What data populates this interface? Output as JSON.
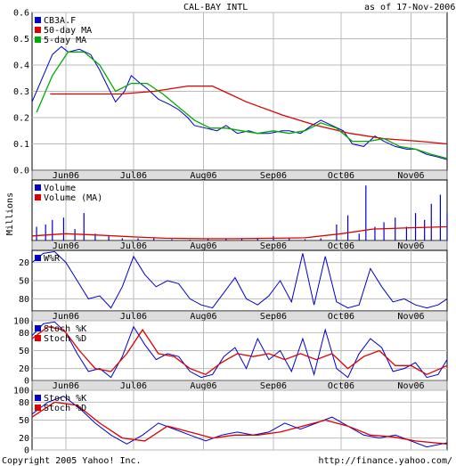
{
  "header": {
    "title": "CAL-BAY INTL",
    "asof": "as of 17-Nov-2006"
  },
  "footer": {
    "copyright": "Copyright 2005 Yahoo! Inc.",
    "url": "http://finance.yahoo.com/"
  },
  "colors": {
    "price": "#0000cc",
    "ma50": "#dd0000",
    "ma5": "#00aa00",
    "volume": "#0000cc",
    "volume_ma": "#dd0000",
    "grid": "#bbbbbb",
    "axis_band": "#dddddd"
  },
  "x_axis": {
    "start": "2006-05-17",
    "end": "2006-11-17",
    "ticks": [
      {
        "label": "Jun06",
        "date": "2006-06-01"
      },
      {
        "label": "Jul06",
        "date": "2006-07-01"
      },
      {
        "label": "Aug06",
        "date": "2006-08-01"
      },
      {
        "label": "Sep06",
        "date": "2006-09-01"
      },
      {
        "label": "Oct06",
        "date": "2006-10-01"
      },
      {
        "label": "Nov06",
        "date": "2006-11-01"
      }
    ]
  },
  "chart_data": [
    {
      "type": "line",
      "title": "",
      "ylim": [
        0,
        0.6
      ],
      "yticks": [
        "0.0",
        "0.1",
        "0.2",
        "0.3",
        "0.4",
        "0.5",
        "0.6"
      ],
      "yvalues": [
        0,
        0.1,
        0.2,
        0.3,
        0.4,
        0.5,
        0.6
      ],
      "legend": "top-left",
      "series": [
        {
          "name": "CB3A.F",
          "color": "#0000cc",
          "x": [
            "2006-05-17",
            "2006-05-19",
            "2006-05-23",
            "2006-05-26",
            "2006-05-30",
            "2006-06-02",
            "2006-06-07",
            "2006-06-12",
            "2006-06-16",
            "2006-06-20",
            "2006-06-23",
            "2006-06-27",
            "2006-06-30",
            "2006-07-04",
            "2006-07-07",
            "2006-07-12",
            "2006-07-17",
            "2006-07-21",
            "2006-07-25",
            "2006-07-28",
            "2006-08-02",
            "2006-08-07",
            "2006-08-11",
            "2006-08-16",
            "2006-08-21",
            "2006-08-25",
            "2006-08-30",
            "2006-09-05",
            "2006-09-08",
            "2006-09-13",
            "2006-09-18",
            "2006-09-22",
            "2006-09-27",
            "2006-10-02",
            "2006-10-06",
            "2006-10-11",
            "2006-10-16",
            "2006-10-20",
            "2006-10-25",
            "2006-10-30",
            "2006-11-03",
            "2006-11-08",
            "2006-11-13",
            "2006-11-17"
          ],
          "y": [
            0.26,
            0.3,
            0.38,
            0.44,
            0.47,
            0.45,
            0.46,
            0.44,
            0.38,
            0.31,
            0.26,
            0.3,
            0.36,
            0.33,
            0.31,
            0.27,
            0.25,
            0.23,
            0.2,
            0.17,
            0.16,
            0.15,
            0.17,
            0.14,
            0.15,
            0.14,
            0.14,
            0.15,
            0.15,
            0.14,
            0.17,
            0.19,
            0.17,
            0.15,
            0.1,
            0.09,
            0.13,
            0.11,
            0.09,
            0.08,
            0.08,
            0.06,
            0.05,
            0.04
          ]
        },
        {
          "name": "50-day MA",
          "color": "#dd0000",
          "x": [
            "2006-05-25",
            "2006-06-10",
            "2006-06-25",
            "2006-07-10",
            "2006-07-25",
            "2006-08-05",
            "2006-08-20",
            "2006-09-05",
            "2006-09-20",
            "2006-10-05",
            "2006-10-20",
            "2006-11-05",
            "2006-11-17"
          ],
          "y": [
            0.29,
            0.29,
            0.29,
            0.3,
            0.32,
            0.32,
            0.26,
            0.21,
            0.17,
            0.14,
            0.12,
            0.11,
            0.1
          ]
        },
        {
          "name": "5-day MA",
          "color": "#00aa00",
          "x": [
            "2006-05-19",
            "2006-05-26",
            "2006-06-02",
            "2006-06-09",
            "2006-06-16",
            "2006-06-23",
            "2006-06-30",
            "2006-07-07",
            "2006-07-14",
            "2006-07-21",
            "2006-07-28",
            "2006-08-04",
            "2006-08-11",
            "2006-08-18",
            "2006-08-25",
            "2006-09-01",
            "2006-09-08",
            "2006-09-15",
            "2006-09-22",
            "2006-09-29",
            "2006-10-06",
            "2006-10-13",
            "2006-10-20",
            "2006-10-27",
            "2006-11-03",
            "2006-11-10",
            "2006-11-17"
          ],
          "y": [
            0.22,
            0.36,
            0.45,
            0.45,
            0.4,
            0.3,
            0.33,
            0.33,
            0.29,
            0.24,
            0.19,
            0.16,
            0.16,
            0.15,
            0.14,
            0.15,
            0.14,
            0.15,
            0.18,
            0.16,
            0.11,
            0.11,
            0.12,
            0.09,
            0.08,
            0.06,
            0.045
          ]
        }
      ]
    },
    {
      "type": "bar",
      "title": "",
      "ylabel": "Millions",
      "legend": "top-left",
      "series": [
        {
          "name": "Volume",
          "color": "#0000cc",
          "x": [
            "2006-05-19",
            "2006-05-23",
            "2006-05-26",
            "2006-05-31",
            "2006-06-05",
            "2006-06-09",
            "2006-06-14",
            "2006-06-20",
            "2006-06-26",
            "2006-07-03",
            "2006-07-10",
            "2006-07-18",
            "2006-07-26",
            "2006-08-03",
            "2006-08-11",
            "2006-08-18",
            "2006-08-25",
            "2006-09-01",
            "2006-09-08",
            "2006-09-15",
            "2006-09-22",
            "2006-09-29",
            "2006-10-04",
            "2006-10-09",
            "2006-10-12",
            "2006-10-16",
            "2006-10-20",
            "2006-10-25",
            "2006-10-30",
            "2006-11-03",
            "2006-11-07",
            "2006-11-10",
            "2006-11-14",
            "2006-11-17"
          ],
          "y": [
            0.3,
            0.35,
            0.45,
            0.5,
            0.25,
            0.6,
            0.15,
            0.1,
            0.05,
            0.05,
            0.05,
            0.03,
            0.02,
            0.03,
            0.03,
            0.05,
            0.05,
            0.1,
            0.05,
            0.03,
            0.05,
            0.35,
            0.55,
            0.15,
            1.2,
            0.3,
            0.4,
            0.5,
            0.3,
            0.6,
            0.45,
            0.8,
            1.0,
            0.6
          ]
        },
        {
          "name": "Volume (MA)",
          "color": "#dd0000",
          "x": [
            "2006-05-17",
            "2006-06-01",
            "2006-06-15",
            "2006-07-01",
            "2006-07-15",
            "2006-08-01",
            "2006-08-15",
            "2006-09-01",
            "2006-09-15",
            "2006-10-01",
            "2006-10-15",
            "2006-11-01",
            "2006-11-17"
          ],
          "y": [
            0.1,
            0.15,
            0.12,
            0.08,
            0.05,
            0.04,
            0.04,
            0.05,
            0.06,
            0.15,
            0.25,
            0.28,
            0.3
          ]
        }
      ]
    },
    {
      "type": "line",
      "title": "",
      "ylim": [
        -100,
        0
      ],
      "yticks": [
        "20",
        "50",
        "80"
      ],
      "yvalues": [
        -20,
        -50,
        -80
      ],
      "legend": "top-left",
      "series": [
        {
          "name": "W%R",
          "color": "#0000cc",
          "x": [
            "2006-05-17",
            "2006-05-22",
            "2006-05-27",
            "2006-06-01",
            "2006-06-06",
            "2006-06-11",
            "2006-06-16",
            "2006-06-21",
            "2006-06-26",
            "2006-07-01",
            "2006-07-06",
            "2006-07-11",
            "2006-07-16",
            "2006-07-21",
            "2006-07-26",
            "2006-07-31",
            "2006-08-05",
            "2006-08-10",
            "2006-08-15",
            "2006-08-20",
            "2006-08-25",
            "2006-08-30",
            "2006-09-04",
            "2006-09-09",
            "2006-09-14",
            "2006-09-19",
            "2006-09-24",
            "2006-09-29",
            "2006-10-04",
            "2006-10-09",
            "2006-10-14",
            "2006-10-19",
            "2006-10-24",
            "2006-10-29",
            "2006-11-03",
            "2006-11-08",
            "2006-11-13",
            "2006-11-17"
          ],
          "y": [
            -20,
            -5,
            -2,
            -20,
            -50,
            -80,
            -75,
            -95,
            -60,
            -10,
            -40,
            -60,
            -50,
            -55,
            -80,
            -90,
            -95,
            -70,
            -45,
            -80,
            -90,
            -75,
            -50,
            -85,
            -5,
            -90,
            -10,
            -85,
            -95,
            -90,
            -30,
            -60,
            -85,
            -80,
            -90,
            -95,
            -90,
            -80
          ]
        }
      ]
    },
    {
      "type": "line",
      "title": "",
      "ylim": [
        0,
        100
      ],
      "yticks": [
        "0",
        "20",
        "50",
        "80",
        "100"
      ],
      "yvalues": [
        0,
        20,
        50,
        80,
        100
      ],
      "legend": "top-left",
      "series": [
        {
          "name": "Stoch %K",
          "color": "#0000cc",
          "x": [
            "2006-05-17",
            "2006-05-22",
            "2006-05-27",
            "2006-06-01",
            "2006-06-06",
            "2006-06-11",
            "2006-06-16",
            "2006-06-21",
            "2006-06-26",
            "2006-07-01",
            "2006-07-06",
            "2006-07-11",
            "2006-07-16",
            "2006-07-21",
            "2006-07-26",
            "2006-07-31",
            "2006-08-05",
            "2006-08-10",
            "2006-08-15",
            "2006-08-20",
            "2006-08-25",
            "2006-08-30",
            "2006-09-04",
            "2006-09-09",
            "2006-09-14",
            "2006-09-19",
            "2006-09-24",
            "2006-09-29",
            "2006-10-04",
            "2006-10-09",
            "2006-10-14",
            "2006-10-19",
            "2006-10-24",
            "2006-10-29",
            "2006-11-03",
            "2006-11-08",
            "2006-11-13",
            "2006-11-17"
          ],
          "y": [
            75,
            95,
            98,
            80,
            45,
            15,
            20,
            5,
            40,
            90,
            60,
            35,
            45,
            40,
            15,
            5,
            10,
            40,
            55,
            20,
            70,
            35,
            50,
            15,
            70,
            10,
            85,
            20,
            5,
            45,
            70,
            55,
            15,
            20,
            30,
            5,
            10,
            35
          ]
        },
        {
          "name": "Stoch %D",
          "color": "#dd0000",
          "x": [
            "2006-05-17",
            "2006-05-24",
            "2006-05-31",
            "2006-06-07",
            "2006-06-14",
            "2006-06-21",
            "2006-06-28",
            "2006-07-05",
            "2006-07-12",
            "2006-07-19",
            "2006-07-26",
            "2006-08-02",
            "2006-08-09",
            "2006-08-16",
            "2006-08-23",
            "2006-08-30",
            "2006-09-06",
            "2006-09-13",
            "2006-09-20",
            "2006-09-27",
            "2006-10-04",
            "2006-10-11",
            "2006-10-18",
            "2006-10-25",
            "2006-11-01",
            "2006-11-08",
            "2006-11-17"
          ],
          "y": [
            70,
            90,
            85,
            50,
            20,
            15,
            45,
            85,
            45,
            40,
            20,
            10,
            30,
            45,
            40,
            45,
            35,
            45,
            35,
            45,
            20,
            40,
            50,
            25,
            25,
            10,
            25
          ]
        }
      ]
    },
    {
      "type": "line",
      "title": "",
      "ylim": [
        0,
        100
      ],
      "yticks": [
        "0",
        "20",
        "50",
        "80",
        "100"
      ],
      "yvalues": [
        0,
        20,
        50,
        80,
        100
      ],
      "legend": "top-left",
      "series": [
        {
          "name": "Stoch %K",
          "color": "#0000cc",
          "x": [
            "2006-05-17",
            "2006-05-24",
            "2006-05-31",
            "2006-06-07",
            "2006-06-14",
            "2006-06-21",
            "2006-06-28",
            "2006-07-05",
            "2006-07-12",
            "2006-07-19",
            "2006-07-26",
            "2006-08-02",
            "2006-08-09",
            "2006-08-16",
            "2006-08-23",
            "2006-08-30",
            "2006-09-06",
            "2006-09-13",
            "2006-09-20",
            "2006-09-27",
            "2006-10-04",
            "2006-10-11",
            "2006-10-18",
            "2006-10-25",
            "2006-11-01",
            "2006-11-08",
            "2006-11-17"
          ],
          "y": [
            60,
            80,
            90,
            70,
            45,
            25,
            10,
            25,
            45,
            35,
            25,
            15,
            25,
            30,
            25,
            30,
            45,
            35,
            45,
            55,
            40,
            25,
            20,
            25,
            15,
            5,
            12
          ]
        },
        {
          "name": "Stoch %D",
          "color": "#dd0000",
          "x": [
            "2006-05-17",
            "2006-05-27",
            "2006-06-06",
            "2006-06-16",
            "2006-06-26",
            "2006-07-06",
            "2006-07-16",
            "2006-07-26",
            "2006-08-05",
            "2006-08-15",
            "2006-08-25",
            "2006-09-04",
            "2006-09-14",
            "2006-09-24",
            "2006-10-04",
            "2006-10-14",
            "2006-10-24",
            "2006-11-03",
            "2006-11-17"
          ],
          "y": [
            55,
            80,
            75,
            45,
            20,
            15,
            40,
            30,
            20,
            25,
            25,
            30,
            40,
            50,
            40,
            25,
            22,
            15,
            10
          ]
        }
      ]
    }
  ]
}
